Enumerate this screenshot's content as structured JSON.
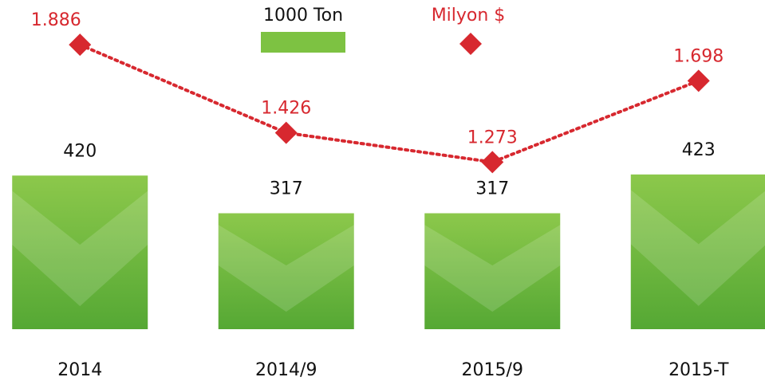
{
  "chart_data": {
    "type": "bar-line",
    "categories": [
      "2014",
      "2014/9",
      "2015/9",
      "2015-T"
    ],
    "series": [
      {
        "name": "1000 Ton",
        "color": "#7dc242",
        "values": [
          420,
          317,
          317,
          423
        ]
      },
      {
        "name": "Milyon $",
        "color": "#d7282f",
        "axis": "y2",
        "values": [
          1.886,
          1.426,
          1.273,
          1.698
        ]
      }
    ],
    "ylim": [
      0,
      900
    ],
    "y2lim": [
      0.4,
      2.12
    ]
  }
}
